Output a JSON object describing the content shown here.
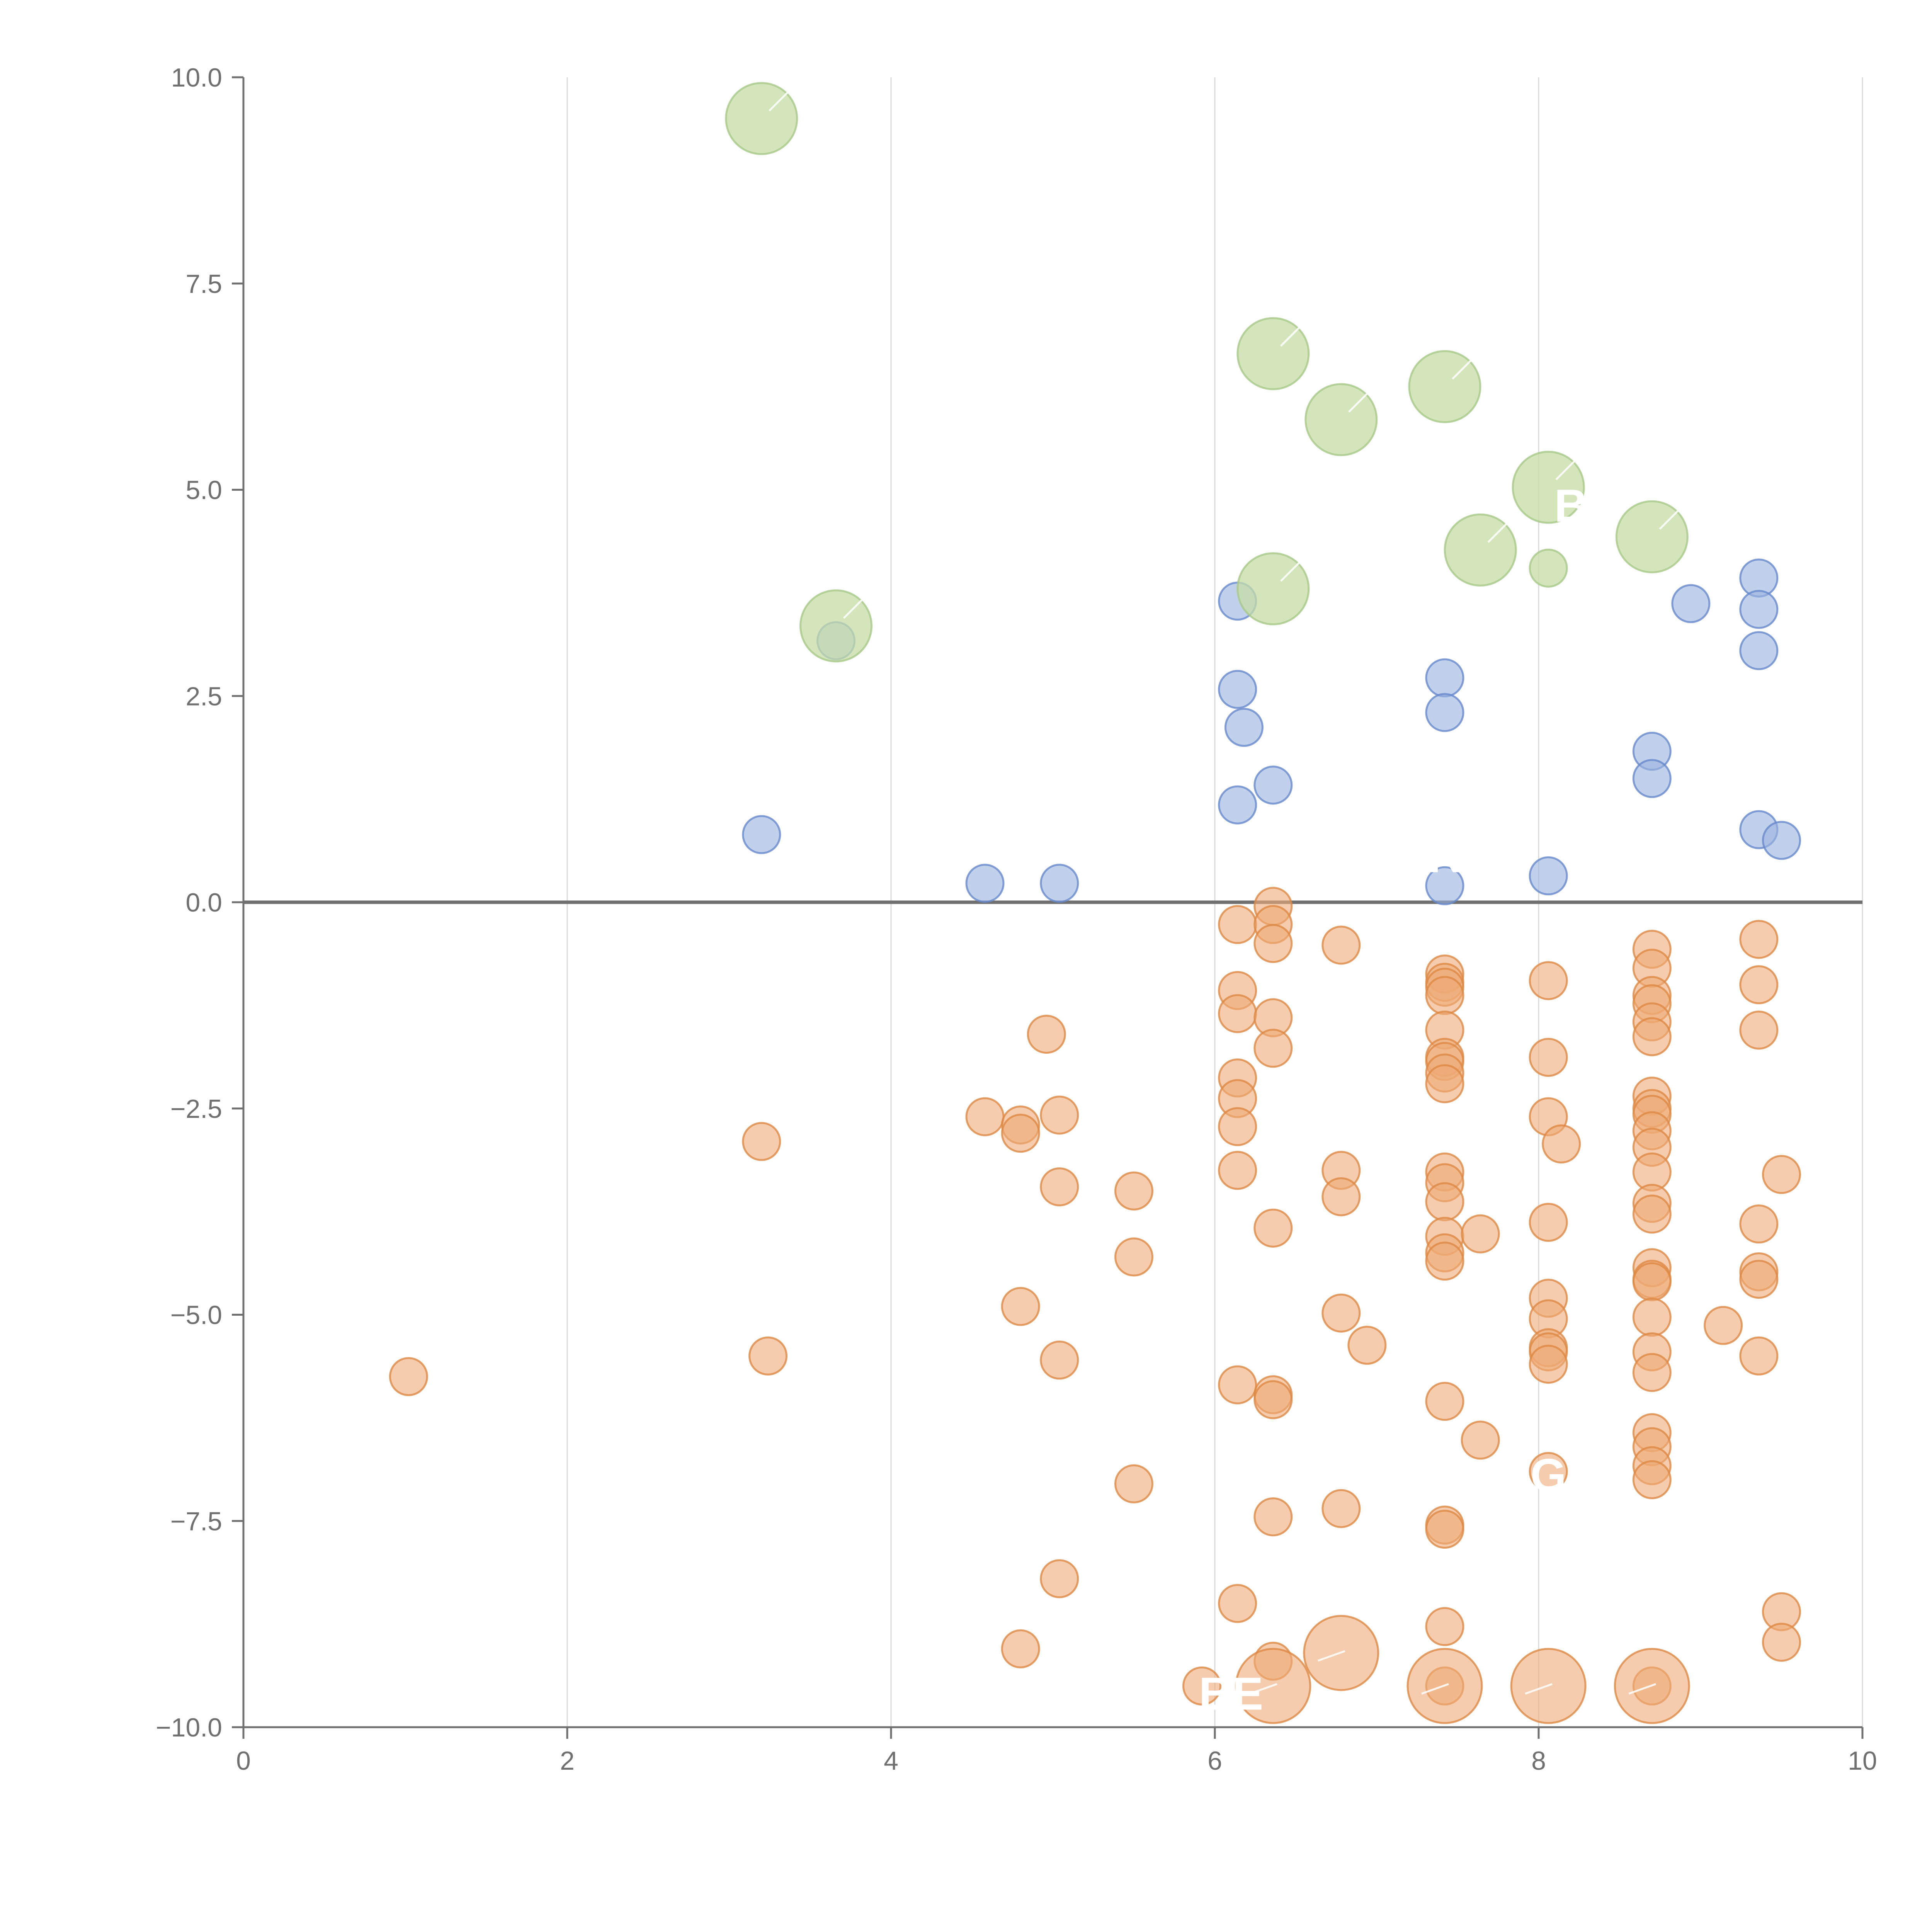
{
  "chart_data": {
    "type": "scatter",
    "title": "",
    "xlabel": "",
    "ylabel": "",
    "xlim": [
      0,
      10
    ],
    "ylim": [
      -10,
      10
    ],
    "x_ticks": [
      "0",
      "2",
      "4",
      "6",
      "8",
      "10"
    ],
    "y_ticks": [
      "10.0",
      "7.5",
      "5.0",
      "2.5",
      "0.0",
      "−2.5",
      "−5.0",
      "−7.5",
      "−10.0"
    ],
    "x_tick_values": [
      0,
      2,
      4,
      6,
      8,
      10
    ],
    "y_tick_values": [
      10,
      7.5,
      5,
      2.5,
      0,
      -2.5,
      -5,
      -7.5,
      -10
    ],
    "grid": "vertical",
    "zero_line": true,
    "colors": {
      "negative": "#eeaa77",
      "negative_stroke": "#dd8844",
      "positive": "#99b3dd",
      "positive_stroke": "#6688cc",
      "highlight": "#c5dca5",
      "highlight_stroke": "#a8c888"
    },
    "series": [
      {
        "values_xy": [
          [
            1.02,
            -5.75
          ],
          [
            3.2,
            -2.9
          ],
          [
            3.24,
            -5.5
          ],
          [
            4.58,
            -2.6
          ],
          [
            4.8,
            -2.7
          ],
          [
            4.8,
            -2.8
          ],
          [
            4.8,
            -4.9
          ],
          [
            4.8,
            -9.05
          ],
          [
            4.96,
            -1.6
          ],
          [
            5.04,
            -2.58
          ],
          [
            5.04,
            -3.45
          ],
          [
            5.04,
            -5.55
          ],
          [
            5.04,
            -8.2
          ],
          [
            5.5,
            -3.5
          ],
          [
            5.5,
            -4.3
          ],
          [
            5.5,
            -7.05
          ],
          [
            5.92,
            -9.5
          ],
          [
            6.14,
            -0.27
          ],
          [
            6.14,
            -1.07
          ],
          [
            6.14,
            -1.35
          ],
          [
            6.14,
            -2.13
          ],
          [
            6.14,
            -2.38
          ],
          [
            6.14,
            -2.72
          ],
          [
            6.14,
            -3.25
          ],
          [
            6.14,
            -5.85
          ],
          [
            6.14,
            -8.5
          ],
          [
            6.36,
            -0.05
          ],
          [
            6.36,
            -0.27
          ],
          [
            6.36,
            -0.5
          ],
          [
            6.36,
            -1.4
          ],
          [
            6.36,
            -1.77
          ],
          [
            6.36,
            -3.95
          ],
          [
            6.36,
            -5.97
          ],
          [
            6.36,
            -6.03
          ],
          [
            6.36,
            -7.45
          ],
          [
            6.36,
            -9.2
          ],
          [
            6.78,
            -0.52
          ],
          [
            6.78,
            -3.25
          ],
          [
            6.78,
            -3.57
          ],
          [
            6.78,
            -4.98
          ],
          [
            6.78,
            -7.35
          ],
          [
            6.94,
            -5.37
          ],
          [
            7.42,
            -0.87
          ],
          [
            7.42,
            -0.97
          ],
          [
            7.42,
            -1.03
          ],
          [
            7.42,
            -1.13
          ],
          [
            7.42,
            -1.55
          ],
          [
            7.42,
            -1.88
          ],
          [
            7.42,
            -1.93
          ],
          [
            7.42,
            -2.07
          ],
          [
            7.42,
            -2.2
          ],
          [
            7.42,
            -3.27
          ],
          [
            7.42,
            -3.4
          ],
          [
            7.42,
            -3.63
          ],
          [
            7.42,
            -4.05
          ],
          [
            7.42,
            -4.25
          ],
          [
            7.42,
            -4.35
          ],
          [
            7.42,
            -6.05
          ],
          [
            7.42,
            -7.55
          ],
          [
            7.42,
            -7.6
          ],
          [
            7.42,
            -8.78
          ],
          [
            7.42,
            -9.5
          ],
          [
            7.64,
            -4.02
          ],
          [
            7.64,
            -6.52
          ],
          [
            8.06,
            -0.95
          ],
          [
            8.06,
            -1.88
          ],
          [
            8.06,
            -2.6
          ],
          [
            8.06,
            -3.88
          ],
          [
            8.06,
            -4.8
          ],
          [
            8.06,
            -5.05
          ],
          [
            8.06,
            -5.4
          ],
          [
            8.06,
            -5.45
          ],
          [
            8.06,
            -5.6
          ],
          [
            8.06,
            -6.9
          ],
          [
            8.14,
            -2.93
          ],
          [
            8.7,
            -0.57
          ],
          [
            8.7,
            -0.8
          ],
          [
            8.7,
            -1.13
          ],
          [
            8.7,
            -1.23
          ],
          [
            8.7,
            -1.45
          ],
          [
            8.7,
            -1.63
          ],
          [
            8.7,
            -2.35
          ],
          [
            8.7,
            -2.5
          ],
          [
            8.7,
            -2.57
          ],
          [
            8.7,
            -2.77
          ],
          [
            8.7,
            -2.97
          ],
          [
            8.7,
            -3.27
          ],
          [
            8.7,
            -3.65
          ],
          [
            8.7,
            -3.78
          ],
          [
            8.7,
            -4.43
          ],
          [
            8.7,
            -4.57
          ],
          [
            8.7,
            -4.6
          ],
          [
            8.7,
            -5.03
          ],
          [
            8.7,
            -5.45
          ],
          [
            8.7,
            -5.7
          ],
          [
            8.7,
            -6.43
          ],
          [
            8.7,
            -6.6
          ],
          [
            8.7,
            -6.83
          ],
          [
            8.7,
            -7.0
          ],
          [
            8.7,
            -9.5
          ],
          [
            9.14,
            -5.13
          ],
          [
            9.36,
            -0.45
          ],
          [
            9.36,
            -1.0
          ],
          [
            9.36,
            -1.55
          ],
          [
            9.36,
            -3.9
          ],
          [
            9.36,
            -4.48
          ],
          [
            9.36,
            -4.57
          ],
          [
            9.36,
            -5.5
          ],
          [
            9.5,
            -3.3
          ],
          [
            9.5,
            -8.6
          ],
          [
            9.5,
            -8.97
          ]
        ]
      },
      {
        "values_xy": [
          [
            3.2,
            0.82
          ],
          [
            3.66,
            3.17
          ],
          [
            4.58,
            0.23
          ],
          [
            5.04,
            0.23
          ],
          [
            6.14,
            3.65
          ],
          [
            6.14,
            2.58
          ],
          [
            6.14,
            1.18
          ],
          [
            6.18,
            2.12
          ],
          [
            6.36,
            1.42
          ],
          [
            7.42,
            2.72
          ],
          [
            7.42,
            2.3
          ],
          [
            7.42,
            0.2
          ],
          [
            8.06,
            0.32
          ],
          [
            8.7,
            1.83
          ],
          [
            8.7,
            1.5
          ],
          [
            8.94,
            3.62
          ],
          [
            9.36,
            3.93
          ],
          [
            9.36,
            3.55
          ],
          [
            9.36,
            3.05
          ],
          [
            9.36,
            0.88
          ],
          [
            9.5,
            0.75
          ]
        ]
      },
      {
        "values_xy": [
          [
            3.2,
            9.5
          ],
          [
            3.66,
            3.35
          ],
          [
            6.36,
            6.65
          ],
          [
            6.36,
            3.8
          ],
          [
            6.78,
            5.85
          ],
          [
            7.42,
            6.25
          ],
          [
            7.64,
            4.27
          ],
          [
            8.06,
            5.03
          ],
          [
            8.06,
            4.05
          ],
          [
            8.7,
            4.43
          ]
        ],
        "sizes": [
          2,
          2,
          2,
          2,
          2,
          2,
          2,
          2,
          1,
          2
        ]
      },
      {
        "values_xy": [
          [
            6.36,
            -9.5
          ],
          [
            6.78,
            -9.1
          ],
          [
            7.42,
            -9.5
          ],
          [
            8.06,
            -9.5
          ],
          [
            8.7,
            -9.5
          ]
        ]
      }
    ],
    "annotations": [
      {
        "text": "R",
        "x": 7.42,
        "y": 0.55
      },
      {
        "text": "G",
        "x": 8.06,
        "y": -6.95
      },
      {
        "text": "BE",
        "x": 6.1,
        "y": -9.6
      },
      {
        "text": "B",
        "x": 8.2,
        "y": 4.8
      }
    ]
  }
}
